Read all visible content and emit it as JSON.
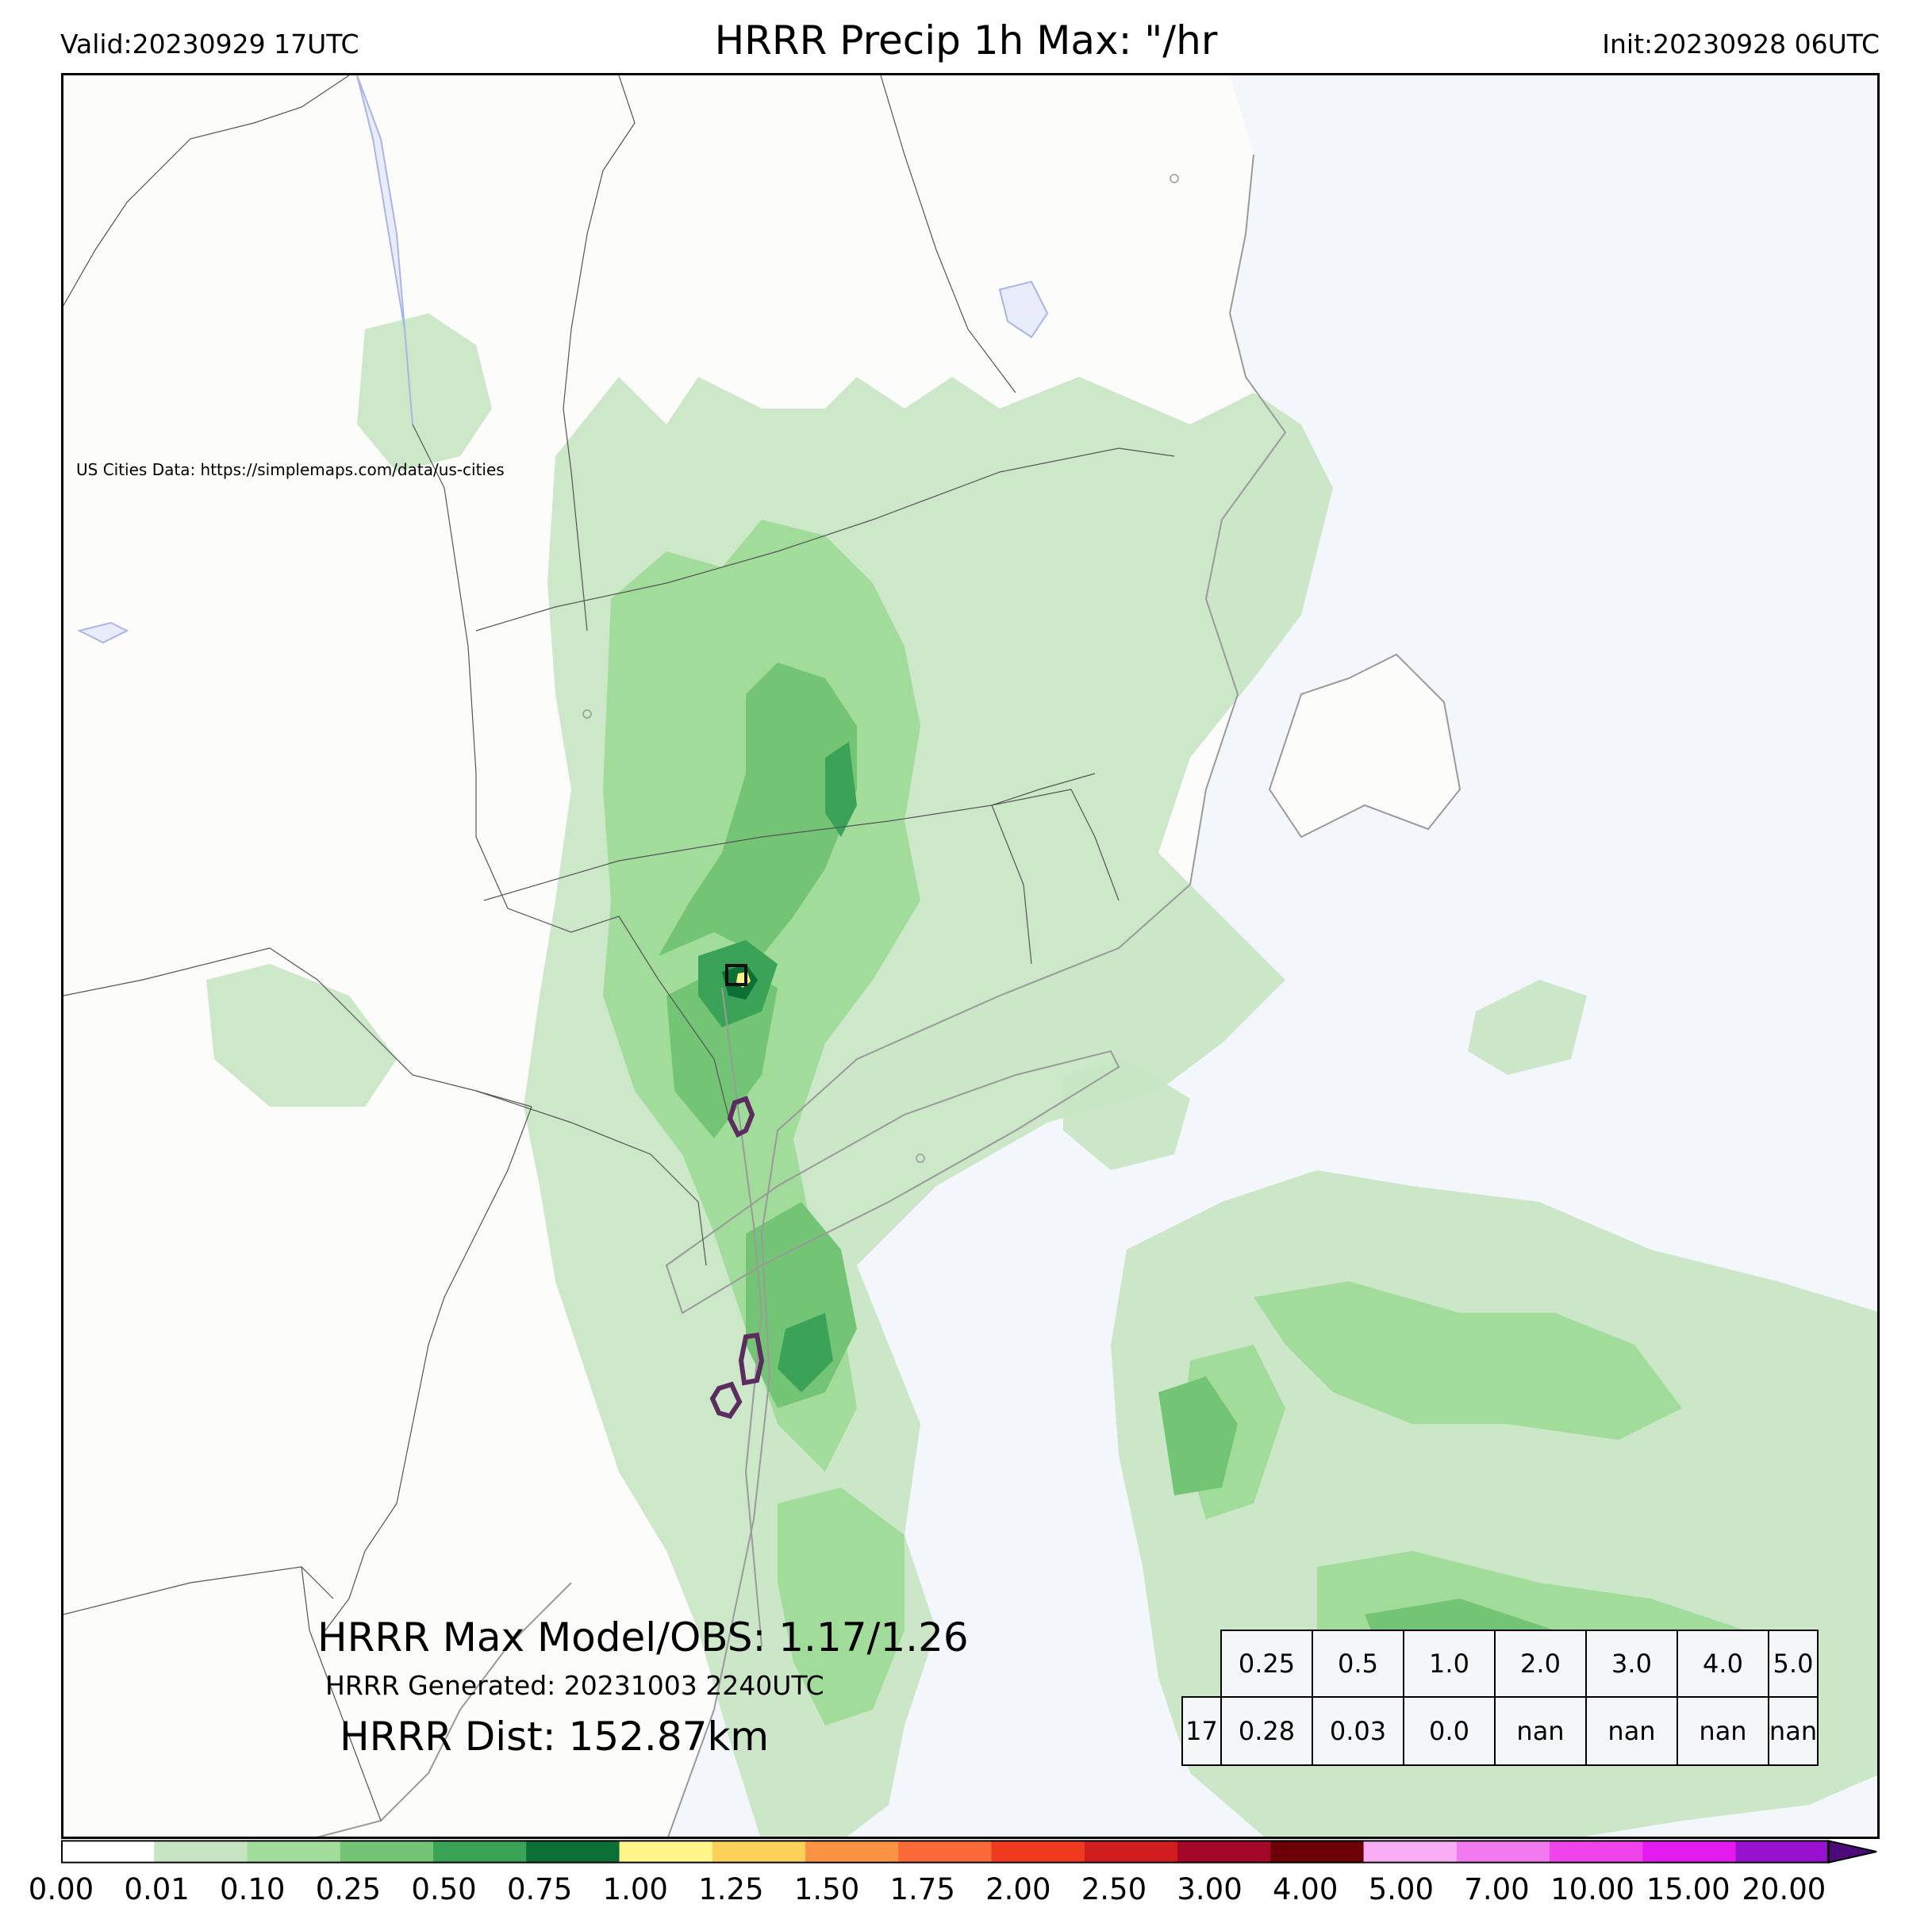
{
  "header": {
    "valid": "Valid:20230929 17UTC",
    "title": "HRRR Precip 1h Max: \"/hr",
    "init": "Init:20230928 06UTC"
  },
  "credit": "US Cities Data: https://simplemaps.com/data/us-cities",
  "stats": {
    "max_model_obs": "HRRR Max Model/OBS: 1.17/1.26",
    "generated": "HRRR Generated: 20231003 2240UTC",
    "dist": "HRRR Dist: 152.87km"
  },
  "threshold_table": {
    "header": [
      "0.25",
      "0.5",
      "1.0",
      "2.0",
      "3.0",
      "4.0",
      "5.0"
    ],
    "row_label": "17",
    "row": [
      "0.28",
      "0.03",
      "0.0",
      "nan",
      "nan",
      "nan",
      "nan"
    ]
  },
  "colorbar": {
    "ticks": [
      "0.00",
      "0.01",
      "0.10",
      "0.25",
      "0.50",
      "0.75",
      "1.00",
      "1.25",
      "1.50",
      "1.75",
      "2.00",
      "2.50",
      "3.00",
      "4.00",
      "5.00",
      "7.00",
      "10.00",
      "15.00",
      "20.00"
    ],
    "colors": [
      "#ffffff",
      "#c7e5c2",
      "#a1dc9b",
      "#74c476",
      "#3aa357",
      "#0c6f35",
      "#fef68a",
      "#fdd05a",
      "#fc9344",
      "#fd6a35",
      "#f03a1f",
      "#d01d1d",
      "#a40829",
      "#6c0007",
      "#f8adf4",
      "#f279ee",
      "#ee44e9",
      "#e31af0",
      "#9810d0"
    ],
    "extend_color": "#4c0a7a"
  },
  "map_colors": {
    "land": "#fcfcfb",
    "ocean": "#f3f6fb",
    "boundary": "#555555",
    "coast": "#9a9a9a",
    "obs_outline": "#5a2d5e"
  }
}
